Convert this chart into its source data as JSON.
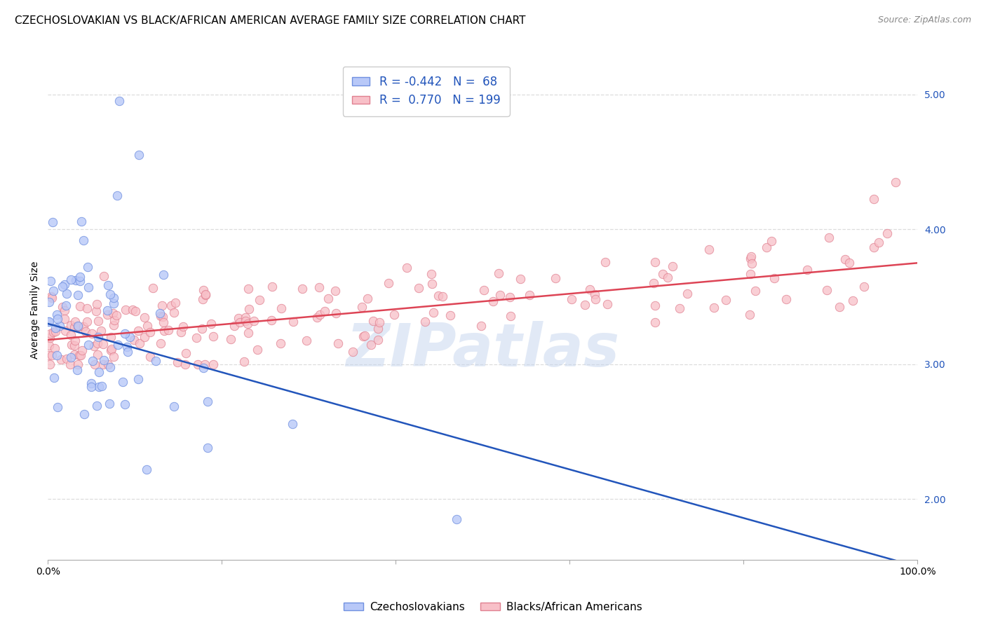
{
  "title": "CZECHOSLOVAKIAN VS BLACK/AFRICAN AMERICAN AVERAGE FAMILY SIZE CORRELATION CHART",
  "source": "Source: ZipAtlas.com",
  "ylabel": "Average Family Size",
  "xlim": [
    0,
    1
  ],
  "ylim": [
    1.55,
    5.25
  ],
  "yticks": [
    2.0,
    3.0,
    4.0,
    5.0
  ],
  "xticks": [
    0.0,
    0.2,
    0.4,
    0.6,
    0.8,
    1.0
  ],
  "xtick_labels": [
    "0.0%",
    "",
    "",
    "",
    "",
    "100.0%"
  ],
  "background_color": "#ffffff",
  "grid_color": "#dddddd",
  "watermark_text": "ZIPatlas",
  "legend_blue_label": "R = -0.442   N =  68",
  "legend_pink_label": "R =  0.770   N = 199",
  "blue_face_color": "#b8c8f8",
  "blue_edge_color": "#7090e0",
  "pink_face_color": "#f8c0c8",
  "pink_edge_color": "#e08090",
  "blue_line_color": "#2255bb",
  "pink_line_color": "#dd4455",
  "czech_label": "Czechoslovakians",
  "black_label": "Blacks/African Americans",
  "czech_R": -0.442,
  "czech_N": 68,
  "black_R": 0.77,
  "black_N": 199,
  "czech_intercept": 3.3,
  "czech_slope": -1.8,
  "black_intercept": 3.18,
  "black_slope": 0.57,
  "title_fontsize": 11,
  "axis_label_fontsize": 10,
  "tick_fontsize": 10,
  "legend_fontsize": 12
}
